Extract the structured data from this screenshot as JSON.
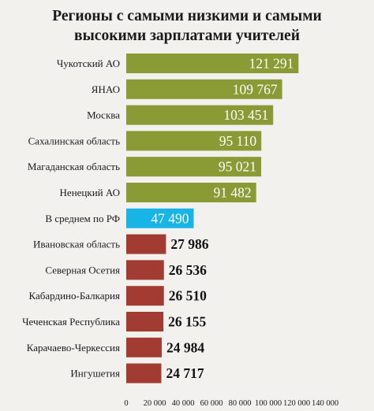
{
  "chart_data": {
    "type": "bar",
    "orientation": "horizontal",
    "title": "Регионы с самыми низкими и самыми высокими зарплатами учителей",
    "title_lines": [
      "Регионы с самыми низкими и самыми",
      "высокими зарплатами учителей"
    ],
    "categories": [
      "Чукотский АО",
      "ЯНАО",
      "Москва",
      "Сахалинская область",
      "Магаданская область",
      "Ненецкий АО",
      "В среднем по РФ",
      "Ивановская область",
      "Северная Осетия",
      "Кабардино-Балкария",
      "Чеченская Республика",
      "Карачаево-Черкессия",
      "Ингушетия"
    ],
    "values": [
      121291,
      109767,
      103451,
      95110,
      95021,
      91482,
      47490,
      27986,
      26536,
      26510,
      26155,
      24984,
      24717
    ],
    "value_labels": [
      "121 291",
      "109 767",
      "103 451",
      "95 110",
      "95 021",
      "91 482",
      "47 490",
      "27 986",
      "26 536",
      "26 510",
      "26 155",
      "24 984",
      "24 717"
    ],
    "bar_colors": [
      "#8a9a34",
      "#8a9a34",
      "#8a9a34",
      "#8a9a34",
      "#8a9a34",
      "#8a9a34",
      "#18b4e6",
      "#a23b32",
      "#a23b32",
      "#a23b32",
      "#a23b32",
      "#a23b32",
      "#a23b32"
    ],
    "label_inside": [
      true,
      true,
      true,
      true,
      true,
      true,
      true,
      false,
      false,
      false,
      false,
      false,
      false
    ],
    "xlim": [
      0,
      140000
    ],
    "xticks": [
      0,
      20000,
      40000,
      60000,
      80000,
      100000,
      120000,
      140000
    ],
    "xtick_labels": [
      "0",
      "20 000",
      "40 000",
      "60 000",
      "80 000",
      "100 000",
      "120 000",
      "140 000"
    ],
    "grid": false,
    "legend": "none"
  }
}
